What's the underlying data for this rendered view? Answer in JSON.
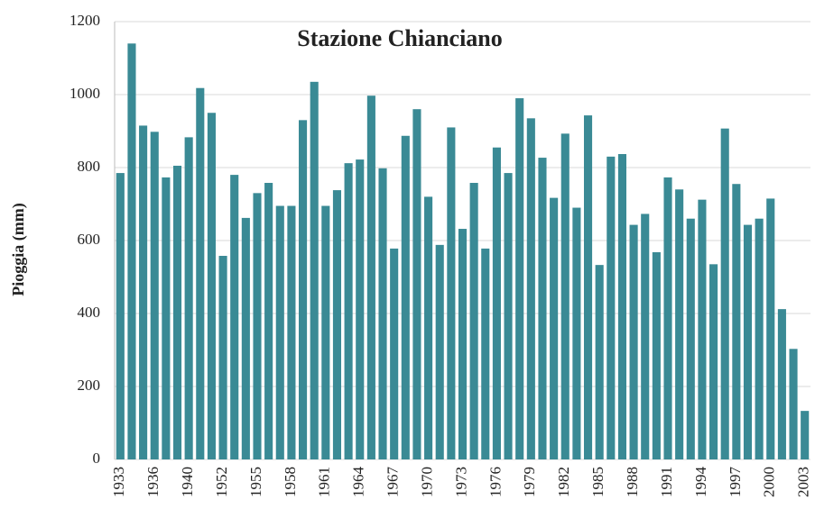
{
  "chart_data": {
    "type": "bar",
    "title": "Stazione Chianciano",
    "y_label": "Pioggia (mm)",
    "categories": [
      "1933",
      null,
      null,
      "1936",
      null,
      null,
      "1940",
      null,
      null,
      "1952",
      null,
      null,
      "1955",
      null,
      null,
      "1958",
      null,
      null,
      "1961",
      null,
      null,
      "1964",
      null,
      null,
      "1967",
      null,
      null,
      "1970",
      null,
      null,
      "1973",
      null,
      null,
      "1976",
      null,
      null,
      "1979",
      null,
      null,
      "1982",
      null,
      null,
      "1985",
      null,
      null,
      "1988",
      null,
      null,
      "1991",
      null,
      null,
      "1994",
      null,
      null,
      "1997",
      null,
      null,
      "2000",
      null,
      null,
      "2003"
    ],
    "values": [
      785,
      1140,
      915,
      898,
      773,
      805,
      883,
      1018,
      950,
      558,
      780,
      662,
      730,
      758,
      695,
      695,
      930,
      1035,
      695,
      738,
      812,
      822,
      997,
      798,
      578,
      887,
      960,
      720,
      588,
      910,
      632,
      758,
      578,
      855,
      785,
      990,
      935,
      827,
      717,
      893,
      690,
      943,
      533,
      830,
      837,
      643,
      673,
      568,
      773,
      740,
      660,
      712,
      535,
      907,
      755,
      643,
      660,
      715,
      412,
      303,
      133
    ],
    "color": "#3a8a95",
    "ylim": [
      0,
      1200
    ],
    "yticks": [
      0,
      200,
      400,
      600,
      800,
      1000,
      1200
    ],
    "grid": true
  }
}
